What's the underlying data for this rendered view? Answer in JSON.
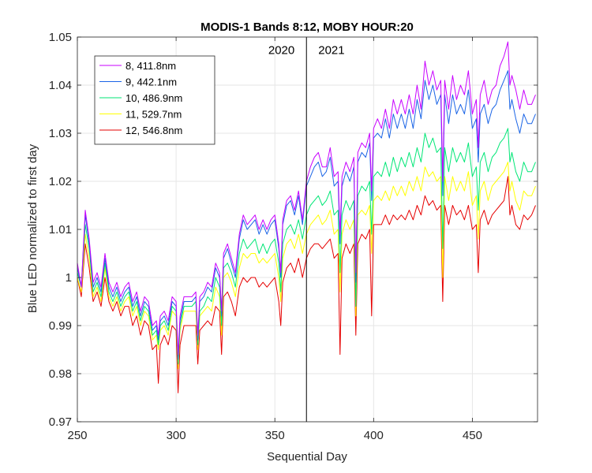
{
  "chart_data": {
    "type": "line",
    "title": "MODIS-1 Bands 8:12, MOBY HOUR:20",
    "xlabel": "Sequential Day",
    "ylabel": "Blue LED normalized to first day",
    "xlim": [
      250,
      483
    ],
    "ylim": [
      0.97,
      1.05
    ],
    "xticks": [
      250,
      300,
      350,
      400,
      450
    ],
    "yticks": [
      0.97,
      0.98,
      0.99,
      1,
      1.01,
      1.02,
      1.03,
      1.04,
      1.05
    ],
    "xtick_labels": [
      "250",
      "300",
      "350",
      "400",
      "450"
    ],
    "ytick_labels": [
      "0.97",
      "0.98",
      "0.99",
      "1",
      "1.01",
      "1.02",
      "1.03",
      "1.04",
      "1.05"
    ],
    "grid": true,
    "legend_position": "top-left",
    "annotations": [
      {
        "text": "2020",
        "x": 360,
        "y": 1.0465
      },
      {
        "text": "2021",
        "x": 372,
        "y": 1.0465
      }
    ],
    "vline_x": 366,
    "x": [
      250,
      252,
      254,
      256,
      258,
      260,
      262,
      264,
      266,
      268,
      270,
      272,
      274,
      276,
      278,
      280,
      282,
      284,
      286,
      288,
      290,
      291,
      292,
      294,
      296,
      298,
      300,
      301,
      302,
      304,
      306,
      308,
      310,
      311,
      312,
      314,
      316,
      318,
      320,
      322,
      323,
      324,
      326,
      328,
      330,
      332,
      334,
      336,
      338,
      340,
      342,
      344,
      346,
      348,
      350,
      352,
      353,
      354,
      356,
      358,
      360,
      362,
      364,
      366,
      368,
      370,
      372,
      374,
      376,
      378,
      380,
      382,
      383,
      384,
      386,
      388,
      390,
      391,
      392,
      394,
      396,
      398,
      399,
      400,
      402,
      404,
      406,
      408,
      410,
      412,
      414,
      416,
      418,
      420,
      422,
      424,
      426,
      428,
      430,
      432,
      434,
      435,
      436,
      438,
      440,
      442,
      444,
      446,
      448,
      450,
      452,
      453,
      454,
      456,
      458,
      460,
      462,
      464,
      466,
      468,
      469,
      470,
      472,
      474,
      476,
      478,
      480,
      482
    ],
    "series": [
      {
        "name": "8, 411.8nm",
        "color": "#c800ff",
        "values": [
          1.003,
          0.998,
          1.014,
          1.008,
          0.999,
          1.001,
          0.998,
          1.005,
          0.999,
          0.997,
          0.999,
          0.996,
          0.998,
          0.999,
          0.995,
          0.997,
          0.993,
          0.996,
          0.995,
          0.99,
          0.991,
          0.988,
          0.992,
          0.993,
          0.991,
          0.996,
          0.995,
          0.984,
          0.992,
          0.996,
          0.996,
          0.996,
          0.997,
          0.988,
          0.996,
          0.997,
          0.999,
          0.998,
          1.003,
          1.001,
          0.993,
          1.005,
          1.007,
          1.004,
          1.001,
          1.009,
          1.013,
          1.011,
          1.012,
          1.013,
          1.01,
          1.012,
          1.01,
          1.012,
          1.013,
          1.007,
          1.001,
          1.012,
          1.016,
          1.017,
          1.014,
          1.018,
          1.012,
          1.02,
          1.023,
          1.025,
          1.026,
          1.023,
          1.023,
          1.027,
          1.021,
          1.022,
          1.009,
          1.021,
          1.024,
          1.022,
          1.025,
          1.001,
          1.026,
          1.028,
          1.027,
          1.03,
          1.018,
          1.031,
          1.033,
          1.031,
          1.035,
          1.031,
          1.037,
          1.034,
          1.037,
          1.034,
          1.038,
          1.034,
          1.04,
          1.035,
          1.045,
          1.04,
          1.043,
          1.039,
          1.041,
          1.02,
          1.041,
          1.035,
          1.042,
          1.037,
          1.04,
          1.038,
          1.043,
          1.034,
          1.037,
          1.027,
          1.038,
          1.041,
          1.036,
          1.039,
          1.04,
          1.044,
          1.046,
          1.049,
          1.04,
          1.042,
          1.039,
          1.035,
          1.039,
          1.036,
          1.036,
          1.038
        ]
      },
      {
        "name": "9, 442.1nm",
        "color": "#1a64e6",
        "values": [
          1.002,
          0.998,
          1.013,
          1.007,
          0.998,
          1.0,
          0.997,
          1.004,
          0.998,
          0.996,
          0.998,
          0.995,
          0.997,
          0.998,
          0.994,
          0.996,
          0.992,
          0.995,
          0.994,
          0.989,
          0.99,
          0.987,
          0.991,
          0.992,
          0.99,
          0.995,
          0.994,
          0.983,
          0.991,
          0.995,
          0.995,
          0.995,
          0.996,
          0.987,
          0.995,
          0.996,
          0.998,
          0.997,
          1.002,
          1.0,
          0.992,
          1.004,
          1.006,
          1.003,
          1.0,
          1.008,
          1.012,
          1.01,
          1.011,
          1.012,
          1.009,
          1.011,
          1.009,
          1.011,
          1.012,
          1.006,
          1.0,
          1.011,
          1.015,
          1.016,
          1.013,
          1.017,
          1.011,
          1.019,
          1.021,
          1.023,
          1.024,
          1.021,
          1.022,
          1.025,
          1.019,
          1.02,
          1.007,
          1.019,
          1.022,
          1.02,
          1.023,
          0.999,
          1.024,
          1.026,
          1.025,
          1.028,
          1.016,
          1.029,
          1.03,
          1.029,
          1.033,
          1.029,
          1.034,
          1.031,
          1.034,
          1.031,
          1.035,
          1.031,
          1.037,
          1.033,
          1.041,
          1.037,
          1.04,
          1.036,
          1.038,
          1.017,
          1.038,
          1.032,
          1.038,
          1.034,
          1.036,
          1.034,
          1.039,
          1.031,
          1.033,
          1.024,
          1.034,
          1.036,
          1.032,
          1.035,
          1.036,
          1.039,
          1.041,
          1.043,
          1.035,
          1.037,
          1.033,
          1.03,
          1.034,
          1.032,
          1.032,
          1.034
        ]
      },
      {
        "name": "10, 486.9nm",
        "color": "#00e676",
        "values": [
          1.001,
          0.998,
          1.011,
          1.006,
          0.997,
          0.999,
          0.996,
          1.003,
          0.997,
          0.995,
          0.997,
          0.994,
          0.996,
          0.997,
          0.993,
          0.995,
          0.991,
          0.994,
          0.993,
          0.988,
          0.989,
          0.986,
          0.99,
          0.991,
          0.989,
          0.994,
          0.993,
          0.982,
          0.99,
          0.994,
          0.994,
          0.994,
          0.995,
          0.986,
          0.993,
          0.994,
          0.996,
          0.995,
          1.0,
          0.998,
          0.99,
          1.002,
          1.003,
          1.001,
          0.998,
          1.005,
          1.008,
          1.006,
          1.007,
          1.008,
          1.005,
          1.007,
          1.005,
          1.007,
          1.008,
          1.003,
          0.997,
          1.007,
          1.01,
          1.011,
          1.009,
          1.012,
          1.008,
          1.013,
          1.015,
          1.016,
          1.017,
          1.015,
          1.016,
          1.018,
          1.013,
          1.014,
          1.001,
          1.013,
          1.016,
          1.014,
          1.016,
          0.994,
          1.017,
          1.019,
          1.018,
          1.02,
          1.009,
          1.021,
          1.022,
          1.021,
          1.024,
          1.021,
          1.025,
          1.022,
          1.025,
          1.023,
          1.026,
          1.023,
          1.027,
          1.024,
          1.03,
          1.027,
          1.029,
          1.026,
          1.027,
          1.006,
          1.027,
          1.022,
          1.027,
          1.024,
          1.026,
          1.024,
          1.028,
          1.021,
          1.023,
          1.014,
          1.024,
          1.026,
          1.022,
          1.025,
          1.026,
          1.028,
          1.029,
          1.031,
          1.024,
          1.026,
          1.022,
          1.02,
          1.024,
          1.022,
          1.022,
          1.024
        ]
      },
      {
        "name": "11, 529.7nm",
        "color": "#ffff00",
        "values": [
          1.0,
          0.997,
          1.009,
          1.004,
          0.996,
          0.998,
          0.995,
          1.002,
          0.996,
          0.994,
          0.996,
          0.993,
          0.995,
          0.996,
          0.992,
          0.994,
          0.99,
          0.993,
          0.992,
          0.987,
          0.988,
          0.985,
          0.989,
          0.99,
          0.988,
          0.993,
          0.992,
          0.981,
          0.989,
          0.993,
          0.993,
          0.993,
          0.993,
          0.985,
          0.992,
          0.993,
          0.994,
          0.993,
          0.998,
          0.996,
          0.988,
          1.0,
          1.001,
          0.999,
          0.996,
          1.002,
          1.005,
          1.004,
          1.005,
          1.005,
          1.003,
          1.004,
          1.003,
          1.004,
          1.005,
          1.0,
          0.995,
          1.004,
          1.007,
          1.008,
          1.006,
          1.009,
          1.005,
          1.009,
          1.011,
          1.012,
          1.013,
          1.011,
          1.012,
          1.014,
          1.009,
          1.01,
          0.997,
          1.009,
          1.012,
          1.01,
          1.012,
          0.992,
          1.013,
          1.014,
          1.013,
          1.015,
          1.005,
          1.016,
          1.017,
          1.016,
          1.018,
          1.016,
          1.019,
          1.017,
          1.019,
          1.017,
          1.02,
          1.018,
          1.021,
          1.018,
          1.023,
          1.021,
          1.022,
          1.02,
          1.021,
          1.0,
          1.021,
          1.016,
          1.021,
          1.018,
          1.02,
          1.018,
          1.022,
          1.015,
          1.017,
          1.008,
          1.018,
          1.02,
          1.016,
          1.019,
          1.02,
          1.021,
          1.022,
          1.024,
          1.018,
          1.02,
          1.016,
          1.014,
          1.018,
          1.017,
          1.017,
          1.019
        ]
      },
      {
        "name": "12, 546.8nm",
        "color": "#e60000",
        "values": [
          1.0,
          0.996,
          1.007,
          1.002,
          0.995,
          0.997,
          0.994,
          1.0,
          0.995,
          0.993,
          0.995,
          0.992,
          0.994,
          0.994,
          0.99,
          0.992,
          0.988,
          0.991,
          0.99,
          0.985,
          0.986,
          0.978,
          0.986,
          0.988,
          0.986,
          0.99,
          0.989,
          0.976,
          0.986,
          0.99,
          0.99,
          0.99,
          0.99,
          0.982,
          0.989,
          0.99,
          0.991,
          0.99,
          0.994,
          0.993,
          0.984,
          0.996,
          0.997,
          0.995,
          0.992,
          0.998,
          1.0,
          0.999,
          1.0,
          1.0,
          0.998,
          0.999,
          0.998,
          0.999,
          1.0,
          0.995,
          0.99,
          0.999,
          1.002,
          1.003,
          1.001,
          1.004,
          1.0,
          1.004,
          1.006,
          1.007,
          1.007,
          1.006,
          1.007,
          1.008,
          1.004,
          1.005,
          0.984,
          1.004,
          1.007,
          1.005,
          1.007,
          0.988,
          1.007,
          1.009,
          1.008,
          1.01,
          0.992,
          1.011,
          1.011,
          1.011,
          1.013,
          1.011,
          1.013,
          1.012,
          1.013,
          1.012,
          1.014,
          1.012,
          1.015,
          1.013,
          1.017,
          1.015,
          1.016,
          1.014,
          1.015,
          0.995,
          1.015,
          1.011,
          1.015,
          1.013,
          1.014,
          1.012,
          1.015,
          1.01,
          1.011,
          1.001,
          1.012,
          1.014,
          1.011,
          1.013,
          1.014,
          1.015,
          1.016,
          1.021,
          1.013,
          1.015,
          1.011,
          1.01,
          1.013,
          1.012,
          1.013,
          1.015
        ]
      }
    ]
  }
}
